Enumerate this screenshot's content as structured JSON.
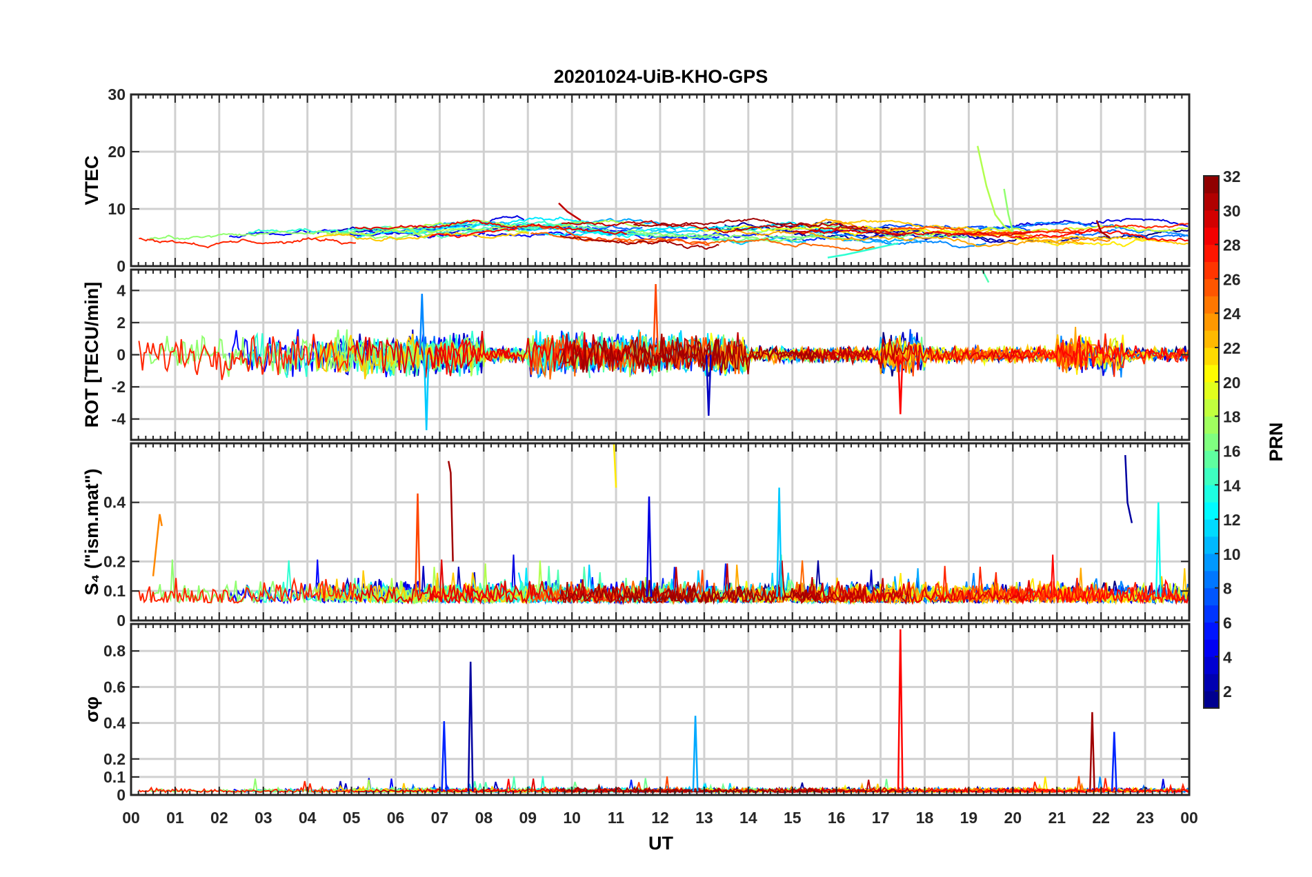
{
  "figure": {
    "title": "20201024-UiB-KHO-GPS",
    "xlabel": "UT",
    "xticks": [
      "00",
      "01",
      "02",
      "03",
      "04",
      "05",
      "06",
      "07",
      "08",
      "09",
      "10",
      "11",
      "12",
      "13",
      "14",
      "15",
      "16",
      "17",
      "18",
      "19",
      "20",
      "21",
      "22",
      "23",
      "00"
    ]
  },
  "colorbar": {
    "label": "PRN",
    "range": [
      1,
      32
    ],
    "ticks": [
      "2",
      "4",
      "6",
      "8",
      "10",
      "12",
      "14",
      "16",
      "18",
      "20",
      "22",
      "24",
      "26",
      "28",
      "30",
      "32"
    ],
    "colormap": "jet"
  },
  "chart_data": [
    {
      "type": "line",
      "ylabel": "VTEC",
      "ylim": [
        0,
        30
      ],
      "yticks": [
        "0",
        "10",
        "20",
        "30"
      ],
      "xlim": [
        0,
        24
      ],
      "series": [
        {
          "prn": 18,
          "x": [
            19.2,
            19.4,
            19.6,
            19.8,
            20.0
          ],
          "y": [
            21,
            14,
            9,
            7,
            6
          ]
        },
        {
          "prn": 17,
          "x": [
            19.8,
            19.9,
            20.0
          ],
          "y": [
            13.5,
            9,
            6
          ]
        },
        {
          "prn": 30,
          "x": [
            9.7,
            9.9,
            10.2
          ],
          "y": [
            11,
            9.5,
            8
          ]
        },
        {
          "prn": 31,
          "x": [
            21.9,
            22.0,
            22.2
          ],
          "y": [
            8,
            6,
            5
          ]
        },
        {
          "prn": 14,
          "x": [
            15.8,
            16.2,
            16.8,
            17.4
          ],
          "y": [
            1.5,
            2,
            3,
            4
          ]
        }
      ]
    },
    {
      "type": "line",
      "ylabel": "ROT [TECU/min]",
      "ylim": [
        -5.3,
        5.3
      ],
      "yticks": [
        "-4",
        "-2",
        "0",
        "2",
        "4"
      ],
      "xlim": [
        0,
        24
      ],
      "series": [
        {
          "prn": 15,
          "x": [
            19.3,
            19.45
          ],
          "y": [
            5.3,
            4.5
          ]
        },
        {
          "prn": 26,
          "x": [
            11.9
          ],
          "y": [
            4.4
          ]
        },
        {
          "prn": 9,
          "x": [
            6.6
          ],
          "y": [
            3.8
          ]
        },
        {
          "prn": 11,
          "x": [
            6.7
          ],
          "y": [
            -4.7
          ]
        },
        {
          "prn": 3,
          "x": [
            13.1
          ],
          "y": [
            -3.8
          ]
        },
        {
          "prn": 28,
          "x": [
            17.45
          ],
          "y": [
            -3.7
          ]
        }
      ]
    },
    {
      "type": "line",
      "ylabel": "S₄ (\"ism.mat\")",
      "ylim": [
        0,
        0.6
      ],
      "yticks": [
        "0",
        "0.1",
        "0.2",
        "0.4"
      ],
      "xlim": [
        0,
        24
      ],
      "series": [
        {
          "prn": 24,
          "x": [
            0.5,
            0.65,
            0.7
          ],
          "y": [
            0.15,
            0.36,
            0.32
          ]
        },
        {
          "prn": 31,
          "x": [
            7.2,
            7.25,
            7.3
          ],
          "y": [
            0.54,
            0.5,
            0.2
          ]
        },
        {
          "prn": 26,
          "x": [
            6.5
          ],
          "y": [
            0.43
          ]
        },
        {
          "prn": 21,
          "x": [
            10.95,
            11.0
          ],
          "y": [
            0.6,
            0.45
          ]
        },
        {
          "prn": 4,
          "x": [
            11.75
          ],
          "y": [
            0.42
          ]
        },
        {
          "prn": 11,
          "x": [
            14.7
          ],
          "y": [
            0.45
          ]
        },
        {
          "prn": 2,
          "x": [
            22.55,
            22.6,
            22.7
          ],
          "y": [
            0.56,
            0.4,
            0.33
          ]
        },
        {
          "prn": 13,
          "x": [
            23.3
          ],
          "y": [
            0.4
          ]
        }
      ]
    },
    {
      "type": "line",
      "ylabel": "σφ",
      "ylim": [
        0,
        0.95
      ],
      "yticks": [
        "0",
        "0.1",
        "0.2",
        "0.4",
        "0.6",
        "0.8"
      ],
      "xlim": [
        0,
        24
      ],
      "series": [
        {
          "prn": 28,
          "x": [
            17.45
          ],
          "y": [
            0.92
          ]
        },
        {
          "prn": 2,
          "x": [
            7.7
          ],
          "y": [
            0.74
          ]
        },
        {
          "prn": 31,
          "x": [
            21.8
          ],
          "y": [
            0.46
          ]
        },
        {
          "prn": 10,
          "x": [
            12.8
          ],
          "y": [
            0.44
          ]
        },
        {
          "prn": 6,
          "x": [
            7.1
          ],
          "y": [
            0.41
          ]
        },
        {
          "prn": 6,
          "x": [
            22.3
          ],
          "y": [
            0.35
          ]
        }
      ]
    }
  ]
}
